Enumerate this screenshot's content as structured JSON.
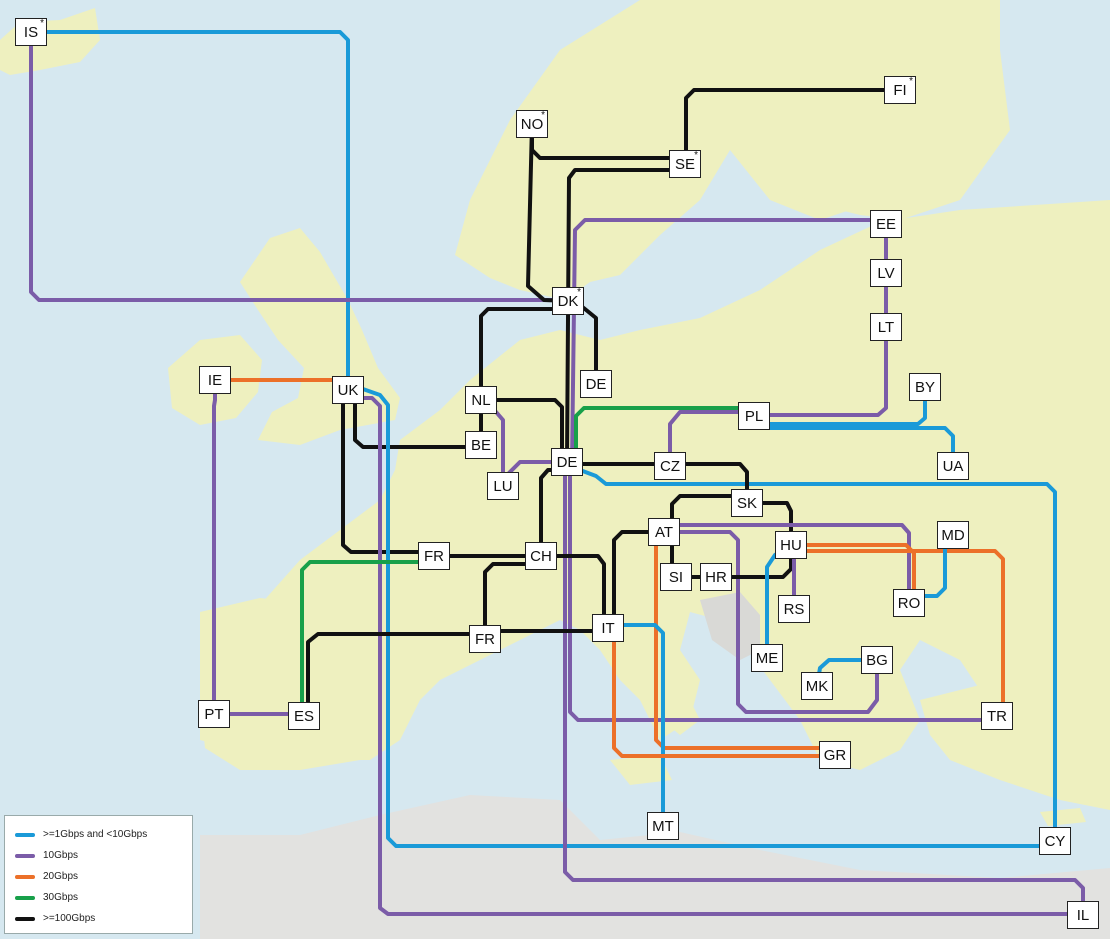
{
  "colors": {
    "sea": "#d6e8f0",
    "land": "#eef0bf",
    "land_outside": "#e2e2e0",
    "1g": "#1a9ad8",
    "10g": "#7b5ca8",
    "20g": "#ec7029",
    "30g": "#18a04a",
    "100g": "#111111"
  },
  "legend": [
    {
      "key": "1g",
      "label": ">=1Gbps and <10Gbps"
    },
    {
      "key": "10g",
      "label": "10Gbps"
    },
    {
      "key": "20g",
      "label": "20Gbps"
    },
    {
      "key": "30g",
      "label": "30Gbps"
    },
    {
      "key": "100g",
      "label": ">=100Gbps"
    }
  ],
  "nodes": [
    {
      "id": "IS",
      "label": "IS",
      "star": "*"
    },
    {
      "id": "FI",
      "label": "FI",
      "star": "*"
    },
    {
      "id": "NO",
      "label": "NO",
      "star": "*"
    },
    {
      "id": "SE",
      "label": "SE",
      "star": "*"
    },
    {
      "id": "EE",
      "label": "EE"
    },
    {
      "id": "LV",
      "label": "LV"
    },
    {
      "id": "DK",
      "label": "DK",
      "star": "*"
    },
    {
      "id": "LT",
      "label": "LT"
    },
    {
      "id": "IE",
      "label": "IE"
    },
    {
      "id": "UK",
      "label": "UK"
    },
    {
      "id": "DE1",
      "label": "DE"
    },
    {
      "id": "BY",
      "label": "BY"
    },
    {
      "id": "NL",
      "label": "NL"
    },
    {
      "id": "PL",
      "label": "PL"
    },
    {
      "id": "BE",
      "label": "BE"
    },
    {
      "id": "UA",
      "label": "UA"
    },
    {
      "id": "DE",
      "label": "DE"
    },
    {
      "id": "CZ",
      "label": "CZ"
    },
    {
      "id": "LU",
      "label": "LU"
    },
    {
      "id": "SK",
      "label": "SK"
    },
    {
      "id": "AT",
      "label": "AT"
    },
    {
      "id": "MD",
      "label": "MD"
    },
    {
      "id": "HU",
      "label": "HU"
    },
    {
      "id": "FR1",
      "label": "FR"
    },
    {
      "id": "CH",
      "label": "CH"
    },
    {
      "id": "SI",
      "label": "SI"
    },
    {
      "id": "HR",
      "label": "HR"
    },
    {
      "id": "RO",
      "label": "RO"
    },
    {
      "id": "RS",
      "label": "RS"
    },
    {
      "id": "IT",
      "label": "IT"
    },
    {
      "id": "FR2",
      "label": "FR"
    },
    {
      "id": "ME",
      "label": "ME"
    },
    {
      "id": "BG",
      "label": "BG"
    },
    {
      "id": "MK",
      "label": "MK"
    },
    {
      "id": "PT",
      "label": "PT"
    },
    {
      "id": "ES",
      "label": "ES"
    },
    {
      "id": "TR",
      "label": "TR"
    },
    {
      "id": "GR",
      "label": "GR"
    },
    {
      "id": "MT",
      "label": "MT"
    },
    {
      "id": "CY",
      "label": "CY"
    },
    {
      "id": "IL",
      "label": "IL"
    }
  ],
  "links": [
    {
      "from": "IS",
      "to": "UK",
      "capacity": "1g"
    },
    {
      "from": "IS",
      "to": "DK",
      "capacity": "10g"
    },
    {
      "from": "FI",
      "to": "SE",
      "capacity": "100g"
    },
    {
      "from": "NO",
      "to": "SE",
      "capacity": "100g"
    },
    {
      "from": "NO",
      "to": "DK",
      "capacity": "100g"
    },
    {
      "from": "SE",
      "to": "DE",
      "capacity": "100g"
    },
    {
      "from": "EE",
      "to": "LV",
      "capacity": "10g"
    },
    {
      "from": "LV",
      "to": "LT",
      "capacity": "10g"
    },
    {
      "from": "EE",
      "to": "DE",
      "capacity": "10g"
    },
    {
      "from": "LT",
      "to": "PL",
      "capacity": "10g"
    },
    {
      "from": "DK",
      "to": "NL",
      "capacity": "100g"
    },
    {
      "from": "DK",
      "to": "DE1",
      "capacity": "100g"
    },
    {
      "from": "IE",
      "to": "UK",
      "capacity": "20g"
    },
    {
      "from": "IE",
      "to": "PT",
      "capacity": "10g"
    },
    {
      "from": "UK",
      "to": "NL",
      "capacity": "100g"
    },
    {
      "from": "UK",
      "to": "FR1",
      "capacity": "100g"
    },
    {
      "from": "UK",
      "to": "CY",
      "capacity": "1g"
    },
    {
      "from": "UK",
      "to": "IL",
      "capacity": "10g"
    },
    {
      "from": "NL",
      "to": "BE",
      "capacity": "100g"
    },
    {
      "from": "NL",
      "to": "DE",
      "capacity": "100g"
    },
    {
      "from": "NL",
      "to": "LU",
      "capacity": "10g"
    },
    {
      "from": "DE",
      "to": "LU",
      "capacity": "10g"
    },
    {
      "from": "DE",
      "to": "CZ",
      "capacity": "100g"
    },
    {
      "from": "DE",
      "to": "CH",
      "capacity": "100g"
    },
    {
      "from": "DE",
      "to": "PL",
      "capacity": "30g"
    },
    {
      "from": "DE",
      "to": "CY",
      "capacity": "1g"
    },
    {
      "from": "DE",
      "to": "TR",
      "capacity": "10g"
    },
    {
      "from": "DE",
      "to": "IL",
      "capacity": "10g"
    },
    {
      "from": "BY",
      "to": "PL",
      "capacity": "1g"
    },
    {
      "from": "PL",
      "to": "UA",
      "capacity": "1g"
    },
    {
      "from": "PL",
      "to": "CZ",
      "capacity": "10g"
    },
    {
      "from": "CZ",
      "to": "SK",
      "capacity": "100g"
    },
    {
      "from": "SK",
      "to": "AT",
      "capacity": "100g"
    },
    {
      "from": "SK",
      "to": "HU",
      "capacity": "100g"
    },
    {
      "from": "AT",
      "to": "SI",
      "capacity": "100g"
    },
    {
      "from": "AT",
      "to": "IT",
      "capacity": "100g"
    },
    {
      "from": "AT",
      "to": "RO",
      "capacity": "10g"
    },
    {
      "from": "AT",
      "to": "BG",
      "capacity": "10g"
    },
    {
      "from": "AT",
      "to": "GR",
      "capacity": "20g"
    },
    {
      "from": "SI",
      "to": "HR",
      "capacity": "100g"
    },
    {
      "from": "HR",
      "to": "HU",
      "capacity": "100g"
    },
    {
      "from": "HU",
      "to": "RS",
      "capacity": "10g"
    },
    {
      "from": "HU",
      "to": "ME",
      "capacity": "1g"
    },
    {
      "from": "HU",
      "to": "RO",
      "capacity": "20g"
    },
    {
      "from": "HU",
      "to": "TR",
      "capacity": "20g"
    },
    {
      "from": "RO",
      "to": "MD",
      "capacity": "1g"
    },
    {
      "from": "FR1",
      "to": "CH",
      "capacity": "100g"
    },
    {
      "from": "FR1",
      "to": "ES",
      "capacity": "30g"
    },
    {
      "from": "CH",
      "to": "IT",
      "capacity": "100g"
    },
    {
      "from": "CH",
      "to": "FR2",
      "capacity": "100g"
    },
    {
      "from": "FR2",
      "to": "IT",
      "capacity": "100g"
    },
    {
      "from": "FR2",
      "to": "ES",
      "capacity": "100g"
    },
    {
      "from": "IT",
      "to": "MT",
      "capacity": "1g"
    },
    {
      "from": "IT",
      "to": "GR",
      "capacity": "20g"
    },
    {
      "from": "BG",
      "to": "MK",
      "capacity": "1g"
    },
    {
      "from": "PT",
      "to": "ES",
      "capacity": "10g"
    }
  ]
}
